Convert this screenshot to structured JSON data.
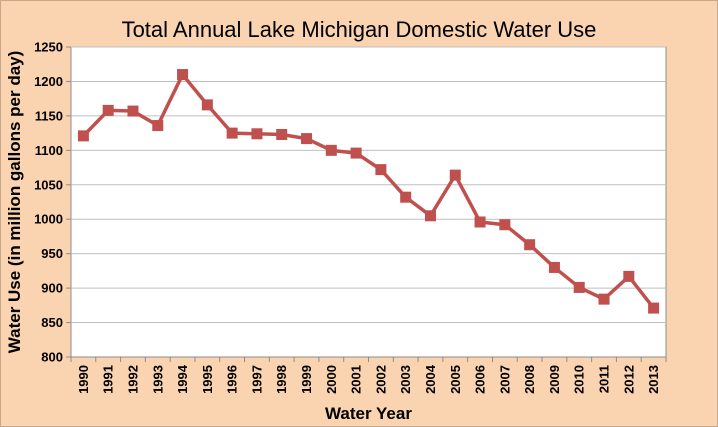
{
  "chart_data": {
    "type": "line",
    "title": "Total Annual Lake Michigan Domestic Water Use",
    "xlabel": "Water Year",
    "ylabel": "Water Use (in million gallons per day)",
    "ylim": [
      800,
      1250
    ],
    "yticks": [
      800,
      850,
      900,
      950,
      1000,
      1050,
      1100,
      1150,
      1200,
      1250
    ],
    "grid": true,
    "legend": "none",
    "categories": [
      "1990",
      "1991",
      "1992",
      "1993",
      "1994",
      "1995",
      "1996",
      "1997",
      "1998",
      "1999",
      "2000",
      "2001",
      "2002",
      "2003",
      "2004",
      "2005",
      "2006",
      "2007",
      "2008",
      "2009",
      "2010",
      "2011",
      "2012",
      "2013"
    ],
    "series": [
      {
        "values": [
          1121,
          1158,
          1157,
          1136,
          1210,
          1166,
          1125,
          1124,
          1123,
          1117,
          1100,
          1096,
          1072,
          1032,
          1005,
          1064,
          996,
          992,
          963,
          930,
          901,
          884,
          917,
          871
        ],
        "color": "#C0504D"
      }
    ],
    "background_color": "#FAD3B0",
    "plot_background_color": "#FFFFFF",
    "grid_color": "#BFBFBF"
  }
}
